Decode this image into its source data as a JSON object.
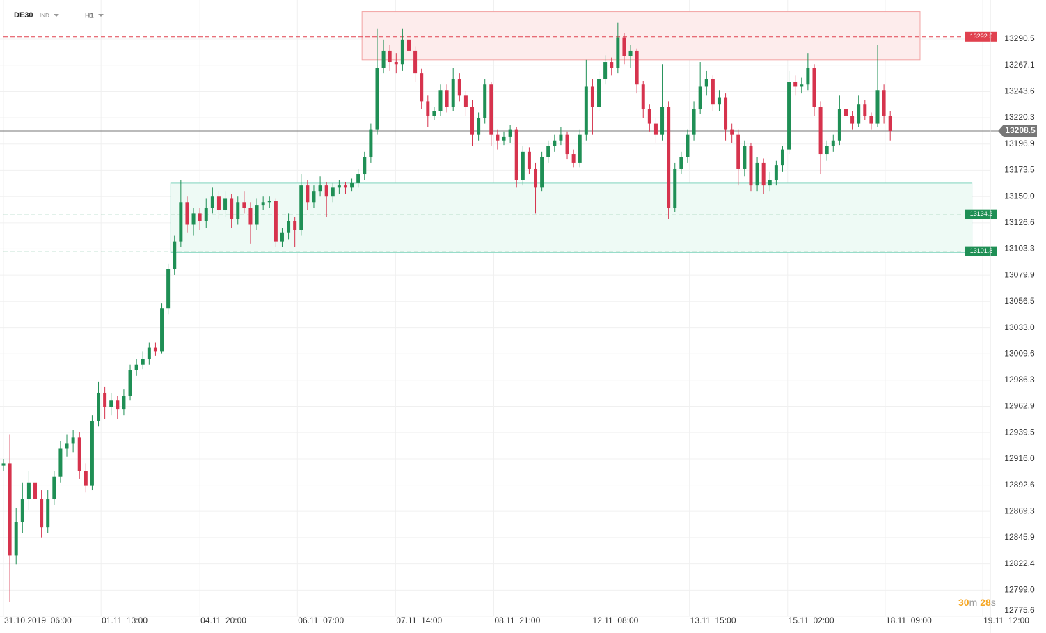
{
  "header": {
    "symbol": "DE30",
    "market": "IND",
    "interval": "H1"
  },
  "countdown": [
    "30",
    "m",
    "28",
    "s"
  ],
  "chart_data": {
    "type": "candlestick",
    "up_color": "#1f8f55",
    "down_color": "#d6334d",
    "xlim": [
      -0.55,
      155.8
    ],
    "xticks": [
      {
        "value": 0,
        "label": "31.10.2019  06:00"
      },
      {
        "value": 15.4,
        "label": "01.11  13:00"
      },
      {
        "value": 31,
        "label": "04.11  20:00"
      },
      {
        "value": 46.4,
        "label": "06.11  07:00"
      },
      {
        "value": 61.9,
        "label": "07.11  14:00"
      },
      {
        "value": 77.4,
        "label": "08.11  21:00"
      },
      {
        "value": 92.9,
        "label": "12.11  08:00"
      },
      {
        "value": 108.3,
        "label": "13.11  15:00"
      },
      {
        "value": 123.8,
        "label": "15.11  02:00"
      },
      {
        "value": 139.2,
        "label": "18.11  09:00"
      },
      {
        "value": 154.6,
        "label": "19.11  12:00"
      }
    ],
    "ylim": [
      12775.6,
      13325.3
    ],
    "yticks": [
      13290.5,
      13267.1,
      13243.6,
      13220.3,
      13196.9,
      13173.5,
      {
        "value": 13150,
        "label": "13150.0"
      },
      13126.6,
      13103.3,
      13079.9,
      13056.5,
      {
        "value": 13033,
        "label": "13033.0"
      },
      13009.6,
      12986.3,
      12962.9,
      12939.5,
      {
        "value": 12916,
        "label": "12916.0"
      },
      12892.6,
      12869.3,
      12845.9,
      12822.4,
      {
        "value": 12799,
        "label": "12799.0"
      },
      12775.6
    ],
    "grid": true,
    "zones": [
      {
        "low": 13272,
        "high": 13315,
        "start": 56.6,
        "end": 144.7,
        "fill": "#fdecec",
        "stroke": "#f2a3a3"
      },
      {
        "low": 13100,
        "high": 13162,
        "start": 26.4,
        "end": 152.9,
        "fill": "#eefaf5",
        "stroke": "#7fd3bd"
      }
    ],
    "levels": [
      {
        "value": 13292.5,
        "color": "#e0414f"
      },
      {
        "value": 13134.2,
        "color": "#1f8f55"
      },
      {
        "value": 13101.3,
        "color": "#1f8f55"
      }
    ],
    "last_price": {
      "value": 13208.5,
      "color": "#777777"
    },
    "candles": [
      [
        12910,
        12916,
        12905,
        12912
      ],
      [
        12912,
        12938,
        12788,
        12830
      ],
      [
        12830,
        12872,
        12822,
        12860
      ],
      [
        12860,
        12895,
        12850,
        12880
      ],
      [
        12880,
        12905,
        12870,
        12895
      ],
      [
        12895,
        12902,
        12872,
        12880
      ],
      [
        12880,
        12888,
        12846,
        12855
      ],
      [
        12855,
        12888,
        12850,
        12880
      ],
      [
        12880,
        12905,
        12875,
        12900
      ],
      [
        12900,
        12932,
        12895,
        12925
      ],
      [
        12925,
        12938,
        12918,
        12930
      ],
      [
        12930,
        12942,
        12922,
        12935
      ],
      [
        12935,
        12940,
        12898,
        12905
      ],
      [
        12905,
        12912,
        12886,
        12892
      ],
      [
        12892,
        12955,
        12888,
        12950
      ],
      [
        12950,
        12985,
        12945,
        12975
      ],
      [
        12975,
        12980,
        12952,
        12962
      ],
      [
        12962,
        12975,
        12955,
        12968
      ],
      [
        12968,
        12972,
        12952,
        12960
      ],
      [
        12960,
        12978,
        12955,
        12972
      ],
      [
        12972,
        13000,
        12968,
        12995
      ],
      [
        12995,
        13005,
        12990,
        13000
      ],
      [
        13000,
        13012,
        12996,
        13005
      ],
      [
        13005,
        13020,
        13000,
        13015
      ],
      [
        13015,
        13020,
        13008,
        13012
      ],
      [
        13012,
        13055,
        13010,
        13050
      ],
      [
        13050,
        13090,
        13045,
        13085
      ],
      [
        13085,
        13115,
        13080,
        13110
      ],
      [
        13110,
        13165,
        13105,
        13145
      ],
      [
        13145,
        13150,
        13118,
        13125
      ],
      [
        13125,
        13140,
        13115,
        13135
      ],
      [
        13135,
        13140,
        13120,
        13128
      ],
      [
        13128,
        13148,
        13122,
        13140
      ],
      [
        13140,
        13158,
        13135,
        13150
      ],
      [
        13150,
        13155,
        13130,
        13138
      ],
      [
        13138,
        13155,
        13132,
        13148
      ],
      [
        13148,
        13152,
        13122,
        13130
      ],
      [
        13130,
        13150,
        13125,
        13145
      ],
      [
        13145,
        13155,
        13135,
        13140
      ],
      [
        13140,
        13145,
        13108,
        13125
      ],
      [
        13125,
        13148,
        13120,
        13142
      ],
      [
        13142,
        13150,
        13138,
        13145
      ],
      [
        13145,
        13150,
        13140,
        13146
      ],
      [
        13146,
        13148,
        13105,
        13110
      ],
      [
        13110,
        13122,
        13105,
        13118
      ],
      [
        13118,
        13135,
        13112,
        13128
      ],
      [
        13128,
        13132,
        13105,
        13120
      ],
      [
        13120,
        13170,
        13115,
        13160
      ],
      [
        13160,
        13165,
        13138,
        13145
      ],
      [
        13145,
        13160,
        13140,
        13155
      ],
      [
        13155,
        13168,
        13150,
        13160
      ],
      [
        13160,
        13163,
        13132,
        13150
      ],
      [
        13150,
        13162,
        13145,
        13158
      ],
      [
        13158,
        13165,
        13152,
        13160
      ],
      [
        13160,
        13163,
        13152,
        13158
      ],
      [
        13158,
        13166,
        13155,
        13162
      ],
      [
        13162,
        13175,
        13158,
        13170
      ],
      [
        13170,
        13190,
        13165,
        13185
      ],
      [
        13185,
        13215,
        13180,
        13210
      ],
      [
        13210,
        13300,
        13205,
        13265
      ],
      [
        13265,
        13290,
        13260,
        13280
      ],
      [
        13280,
        13285,
        13262,
        13270
      ],
      [
        13270,
        13278,
        13260,
        13268
      ],
      [
        13268,
        13300,
        13262,
        13290
      ],
      [
        13290,
        13295,
        13272,
        13280
      ],
      [
        13280,
        13284,
        13252,
        13260
      ],
      [
        13260,
        13264,
        13228,
        13235
      ],
      [
        13235,
        13240,
        13212,
        13222
      ],
      [
        13222,
        13230,
        13218,
        13226
      ],
      [
        13226,
        13250,
        13222,
        13245
      ],
      [
        13245,
        13250,
        13225,
        13230
      ],
      [
        13230,
        13265,
        13226,
        13255
      ],
      [
        13255,
        13260,
        13235,
        13240
      ],
      [
        13240,
        13244,
        13222,
        13230
      ],
      [
        13230,
        13236,
        13195,
        13205
      ],
      [
        13205,
        13225,
        13200,
        13220
      ],
      [
        13220,
        13255,
        13215,
        13250
      ],
      [
        13250,
        13252,
        13195,
        13205
      ],
      [
        13205,
        13210,
        13192,
        13200
      ],
      [
        13200,
        13208,
        13196,
        13203
      ],
      [
        13203,
        13214,
        13198,
        13210
      ],
      [
        13210,
        13212,
        13158,
        13165
      ],
      [
        13165,
        13195,
        13160,
        13190
      ],
      [
        13190,
        13194,
        13170,
        13175
      ],
      [
        13175,
        13180,
        13135,
        13158
      ],
      [
        13158,
        13190,
        13155,
        13185
      ],
      [
        13185,
        13200,
        13180,
        13195
      ],
      [
        13195,
        13205,
        13190,
        13200
      ],
      [
        13200,
        13212,
        13196,
        13205
      ],
      [
        13205,
        13208,
        13183,
        13188
      ],
      [
        13188,
        13192,
        13176,
        13180
      ],
      [
        13180,
        13210,
        13176,
        13205
      ],
      [
        13205,
        13272,
        13200,
        13248
      ],
      [
        13248,
        13255,
        13205,
        13230
      ],
      [
        13230,
        13262,
        13226,
        13255
      ],
      [
        13255,
        13276,
        13250,
        13270
      ],
      [
        13270,
        13274,
        13258,
        13265
      ],
      [
        13265,
        13305,
        13260,
        13292
      ],
      [
        13292,
        13296,
        13268,
        13275
      ],
      [
        13275,
        13285,
        13265,
        13280
      ],
      [
        13280,
        13282,
        13242,
        13250
      ],
      [
        13250,
        13253,
        13220,
        13228
      ],
      [
        13228,
        13232,
        13208,
        13215
      ],
      [
        13215,
        13220,
        13198,
        13205
      ],
      [
        13205,
        13268,
        13200,
        13230
      ],
      [
        13230,
        13235,
        13130,
        13140
      ],
      [
        13140,
        13180,
        13136,
        13175
      ],
      [
        13175,
        13190,
        13170,
        13185
      ],
      [
        13185,
        13210,
        13180,
        13205
      ],
      [
        13205,
        13235,
        13200,
        13228
      ],
      [
        13228,
        13270,
        13224,
        13248
      ],
      [
        13248,
        13262,
        13240,
        13255
      ],
      [
        13255,
        13258,
        13226,
        13232
      ],
      [
        13232,
        13245,
        13226,
        13238
      ],
      [
        13238,
        13242,
        13200,
        13210
      ],
      [
        13210,
        13215,
        13198,
        13205
      ],
      [
        13205,
        13210,
        13160,
        13175
      ],
      [
        13175,
        13200,
        13168,
        13195
      ],
      [
        13195,
        13198,
        13155,
        13160
      ],
      [
        13160,
        13185,
        13155,
        13180
      ],
      [
        13180,
        13184,
        13152,
        13160
      ],
      [
        13160,
        13172,
        13155,
        13165
      ],
      [
        13165,
        13182,
        13160,
        13178
      ],
      [
        13178,
        13195,
        13172,
        13192
      ],
      [
        13192,
        13262,
        13188,
        13252
      ],
      [
        13252,
        13258,
        13240,
        13248
      ],
      [
        13248,
        13256,
        13242,
        13250
      ],
      [
        13250,
        13278,
        13245,
        13265
      ],
      [
        13265,
        13268,
        13222,
        13230
      ],
      [
        13230,
        13235,
        13170,
        13188
      ],
      [
        13188,
        13200,
        13182,
        13195
      ],
      [
        13195,
        13205,
        13190,
        13200
      ],
      [
        13200,
        13240,
        13196,
        13228
      ],
      [
        13228,
        13232,
        13218,
        13222
      ],
      [
        13222,
        13226,
        13210,
        13215
      ],
      [
        13215,
        13240,
        13212,
        13232
      ],
      [
        13232,
        13236,
        13218,
        13222
      ],
      [
        13222,
        13225,
        13210,
        13215
      ],
      [
        13215,
        13285,
        13212,
        13245
      ],
      [
        13245,
        13250,
        13215,
        13222
      ],
      [
        13222,
        13226,
        13200,
        13208.5
      ]
    ]
  }
}
